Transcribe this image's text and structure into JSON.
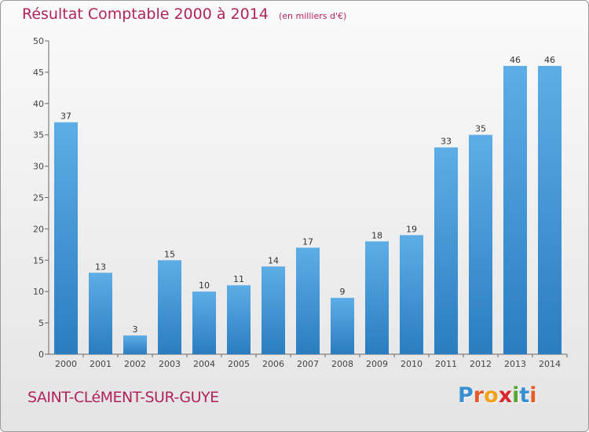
{
  "chart_data": {
    "type": "bar",
    "title": "Résultat Comptable 2000 à 2014",
    "subtitle": "(en milliers d'€)",
    "categories": [
      "2000",
      "2001",
      "2002",
      "2003",
      "2004",
      "2005",
      "2006",
      "2007",
      "2008",
      "2009",
      "2010",
      "2011",
      "2012",
      "2013",
      "2014"
    ],
    "values": [
      37,
      13,
      3,
      15,
      10,
      11,
      14,
      17,
      9,
      18,
      19,
      33,
      35,
      46,
      46
    ],
    "ylim": [
      0,
      50
    ],
    "yticks": [
      0,
      5,
      10,
      15,
      20,
      25,
      30,
      35,
      40,
      45,
      50
    ],
    "grid": false,
    "bar_color_top": "#5dade6",
    "bar_color_bottom": "#2a7dc0"
  },
  "footer": {
    "commune": "SAINT-CLéMENT-SUR-GUYE",
    "logo_letters": [
      "P",
      "r",
      "o",
      "x",
      "i",
      "t",
      "i"
    ],
    "logo_colors": [
      "#3a8fd0",
      "#e35d2b",
      "#f0a21a",
      "#d8282d",
      "#55a630",
      "#3a8fd0",
      "#e35d2b"
    ]
  }
}
